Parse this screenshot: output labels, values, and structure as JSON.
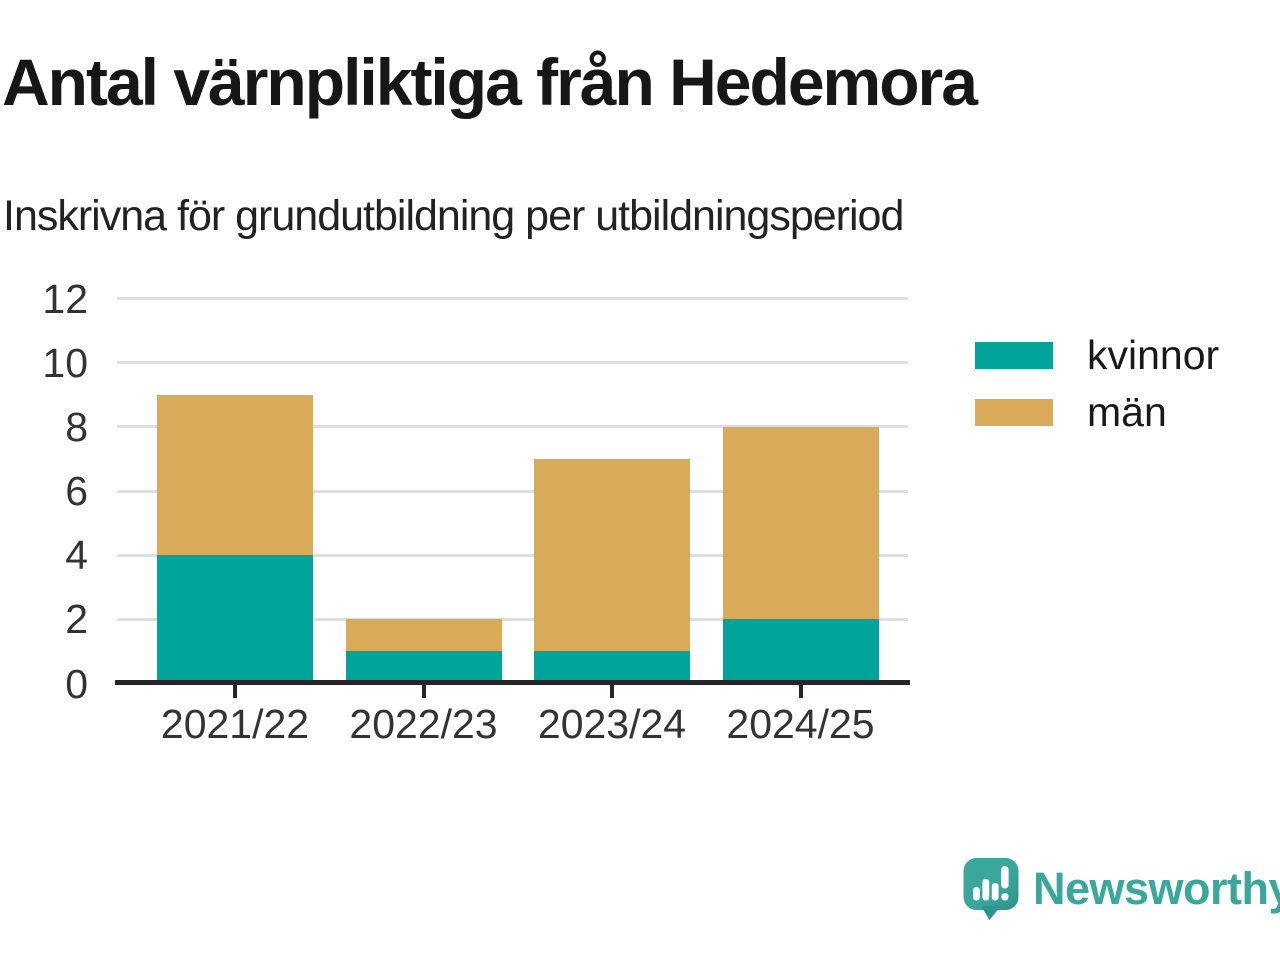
{
  "header": {
    "title": "Antal värnpliktiga från Hedemora",
    "subtitle": "Inskrivna för grundutbildning per utbildningsperiod"
  },
  "chart_data": {
    "type": "bar",
    "stacked": true,
    "categories": [
      "2021/22",
      "2022/23",
      "2023/24",
      "2024/25"
    ],
    "series": [
      {
        "name": "kvinnor",
        "color": "#00a49a",
        "values": [
          4,
          1,
          1,
          2
        ]
      },
      {
        "name": "män",
        "color": "#d9ab59",
        "values": [
          5,
          1,
          6,
          6
        ]
      }
    ],
    "totals": [
      9,
      2,
      7,
      8
    ],
    "ylim": [
      0,
      12
    ],
    "yticks": [
      0,
      2,
      4,
      6,
      8,
      10,
      12
    ],
    "xlabel": "",
    "ylabel": "",
    "grid": true,
    "legend_position": "right"
  },
  "colors": {
    "kvinnor": "#00a49a",
    "man": "#d9ab59",
    "axis": "#262626",
    "gridline": "#dfdfdf",
    "tick_text": "#333333",
    "brand_teal": "#3aa79d"
  },
  "footer": {
    "brand": "Newsworthy"
  }
}
